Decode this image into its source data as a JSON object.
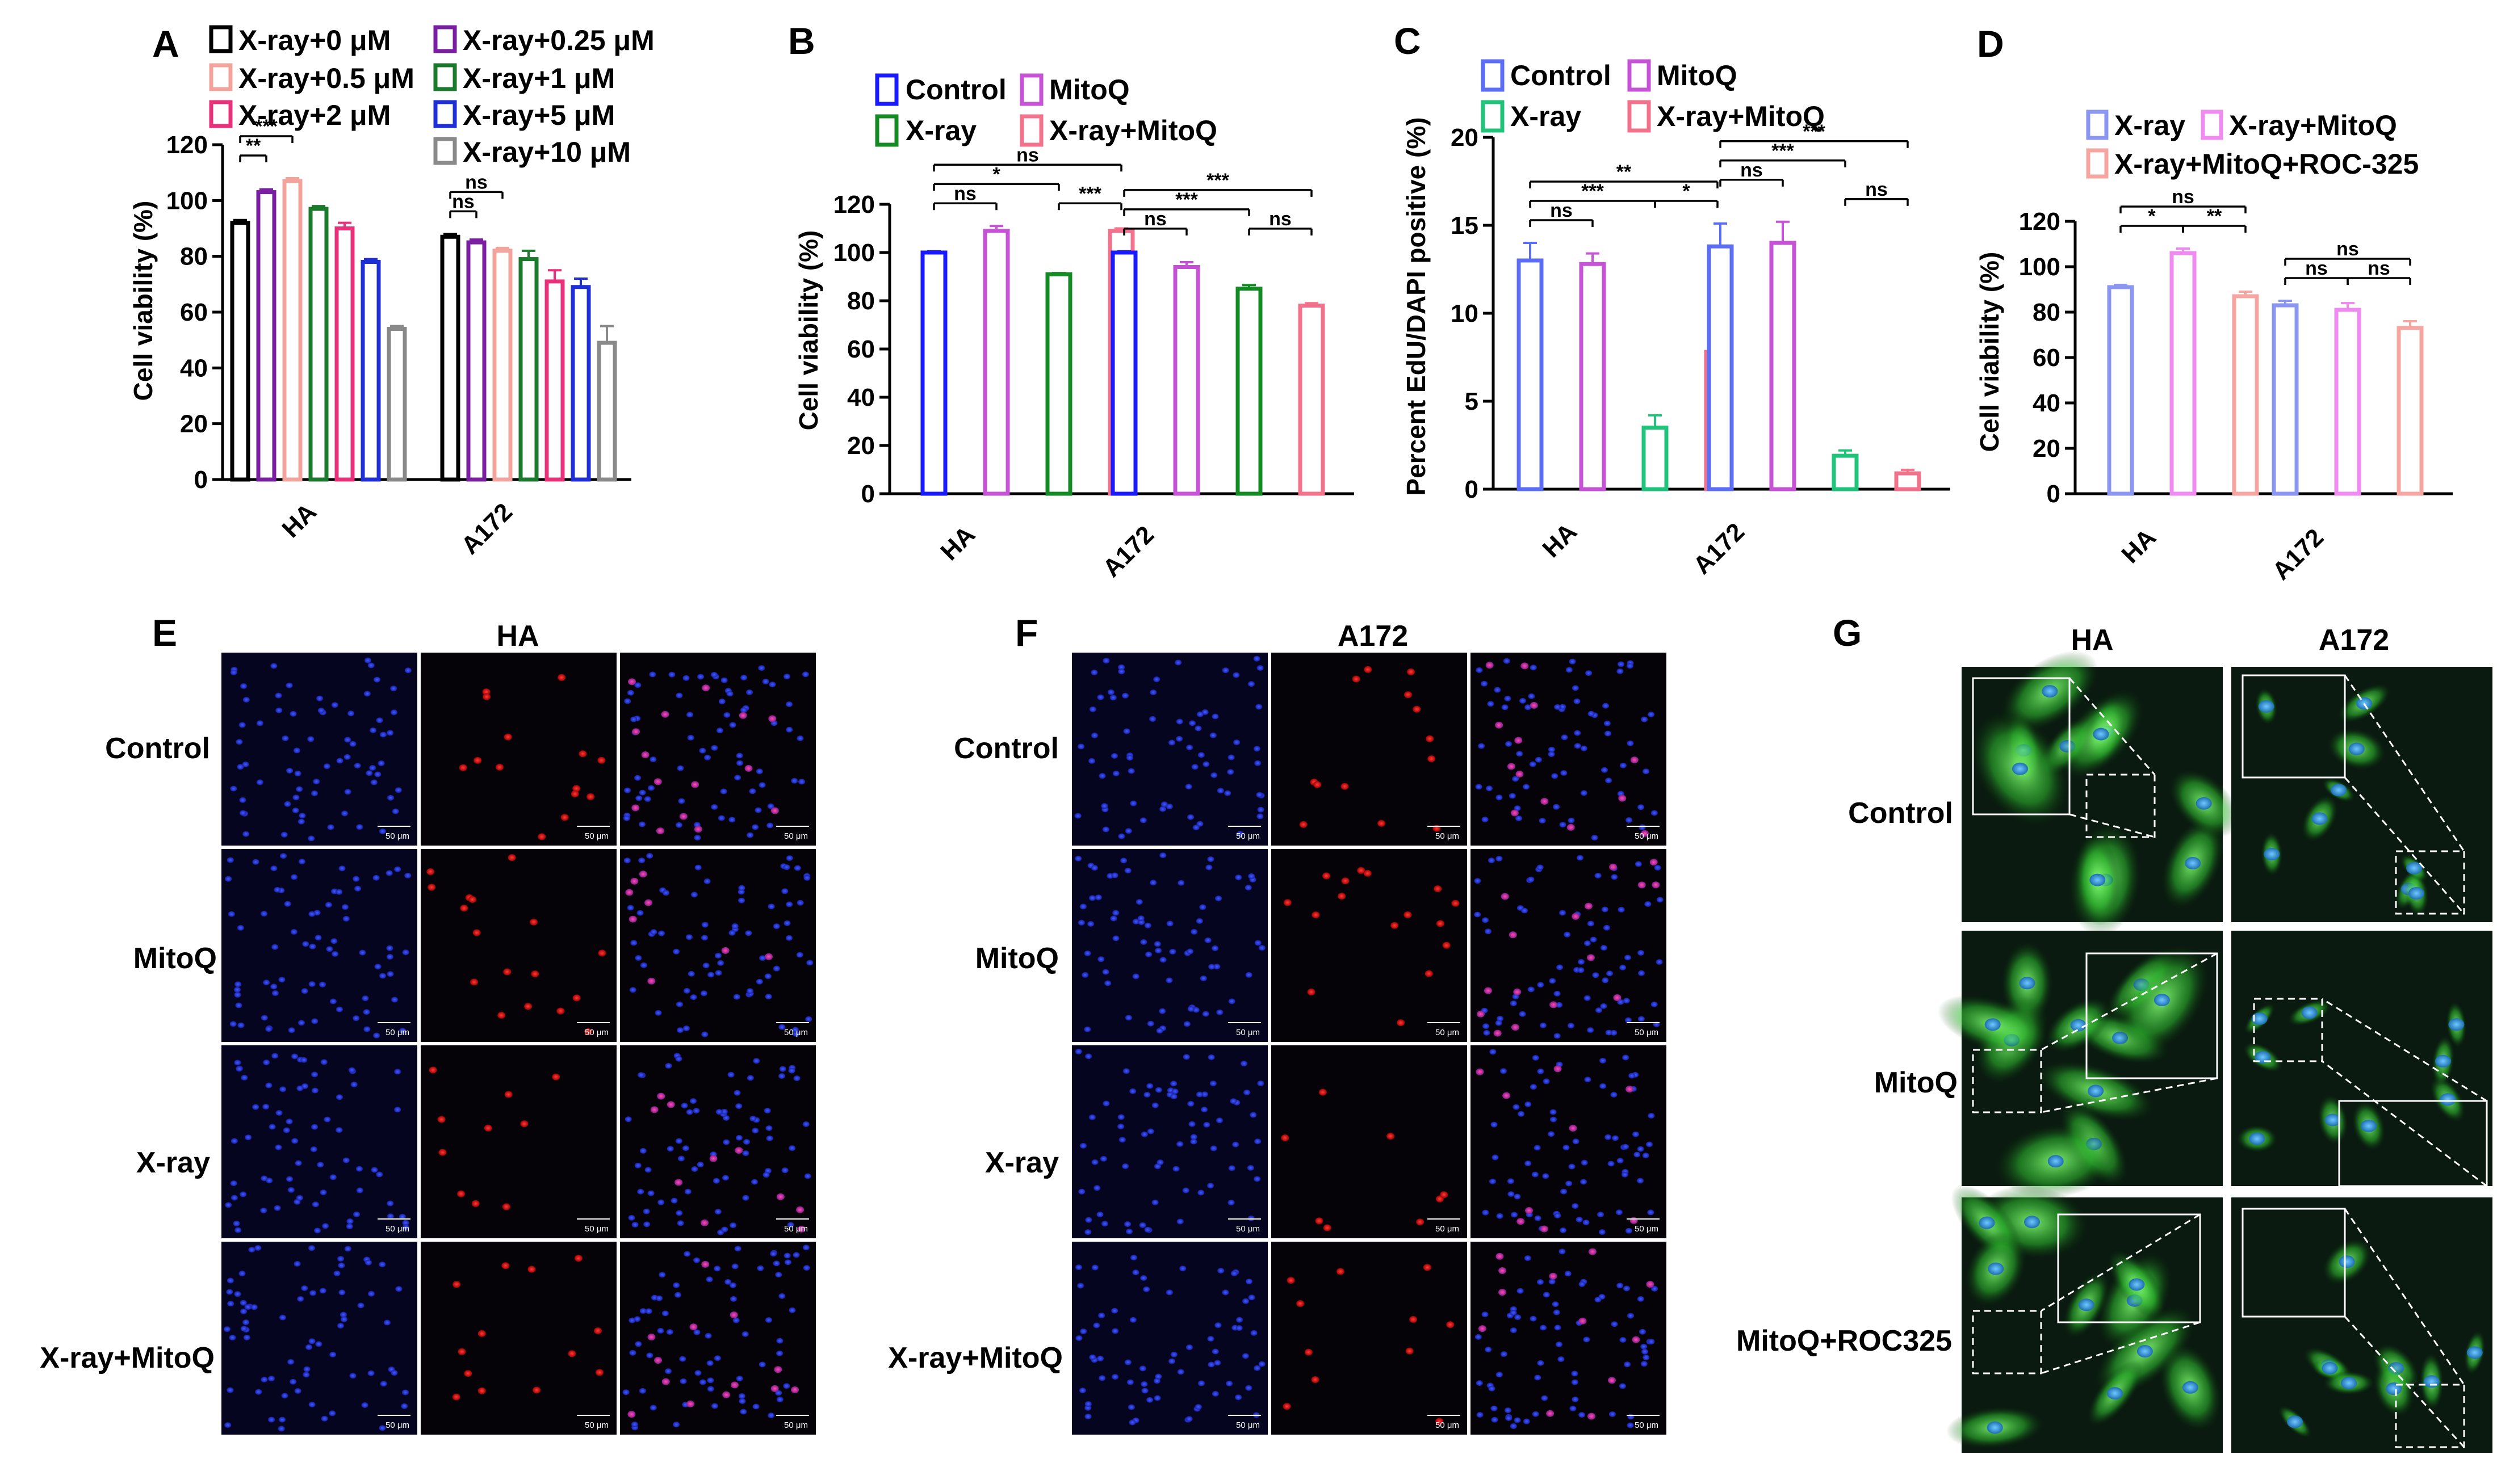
{
  "figure": {
    "panel_letters": {
      "A": "A",
      "B": "B",
      "C": "C",
      "D": "D",
      "E": "E",
      "F": "F",
      "G": "G"
    },
    "col_label_e": "HA",
    "col_label_f": "A172",
    "row_labels_ef": [
      "Control",
      "MitoQ",
      "X-ray",
      "X-ray+MitoQ"
    ],
    "g_col_labels": [
      "HA",
      "A172"
    ],
    "g_row_labels": [
      "Control",
      "MitoQ",
      "MitoQ+ROC325"
    ],
    "scale_bar_label": "50 μm"
  },
  "chart_data": [
    {
      "panel": "A",
      "type": "bar",
      "ylabel": "Cell viability (%)",
      "ylim": [
        0,
        120
      ],
      "yticks": [
        0,
        20,
        40,
        60,
        80,
        100,
        120
      ],
      "categories": [
        "HA",
        "A172"
      ],
      "series": [
        {
          "name": "X-ray+0 μM",
          "color": "#000000",
          "values": [
            92,
            87
          ],
          "errors": [
            1,
            1
          ]
        },
        {
          "name": "X-ray+0.25 μM",
          "color": "#7b1fa2",
          "values": [
            103,
            85
          ],
          "errors": [
            1,
            1
          ]
        },
        {
          "name": "X-ray+0.5 μM",
          "color": "#f2a49c",
          "values": [
            107,
            82
          ],
          "errors": [
            1,
            1
          ]
        },
        {
          "name": "X-ray+1 μM",
          "color": "#1b7a2b",
          "values": [
            97,
            79
          ],
          "errors": [
            1,
            3
          ]
        },
        {
          "name": "X-ray+2 μM",
          "color": "#e8317a",
          "values": [
            90,
            71
          ],
          "errors": [
            2,
            4
          ]
        },
        {
          "name": "X-ray+5 μM",
          "color": "#1f2fd6",
          "values": [
            78,
            69
          ],
          "errors": [
            1,
            3
          ]
        },
        {
          "name": "X-ray+10 μM",
          "color": "#8a8a8a",
          "values": [
            54,
            49
          ],
          "errors": [
            1,
            6
          ]
        }
      ],
      "significance": [
        {
          "group": 0,
          "from": 0,
          "to": 1,
          "label": "**",
          "level": 0
        },
        {
          "group": 0,
          "from": 0,
          "to": 2,
          "label": "***",
          "level": 1
        },
        {
          "group": 1,
          "from": 0,
          "to": 1,
          "label": "ns",
          "level": 0
        },
        {
          "group": 1,
          "from": 0,
          "to": 2,
          "label": "ns",
          "level": 1
        }
      ]
    },
    {
      "panel": "B",
      "type": "bar",
      "ylabel": "Cell viability (%)",
      "ylim": [
        0,
        120
      ],
      "yticks": [
        0,
        20,
        40,
        60,
        80,
        100,
        120
      ],
      "categories": [
        "HA",
        "A172"
      ],
      "series": [
        {
          "name": "Control",
          "color": "#1a1aff",
          "values": [
            100,
            100
          ],
          "errors": [
            0.5,
            0.5
          ]
        },
        {
          "name": "MitoQ",
          "color": "#c653d6",
          "values": [
            109,
            94
          ],
          "errors": [
            2,
            2
          ]
        },
        {
          "name": "X-ray",
          "color": "#138a24",
          "values": [
            91,
            85
          ],
          "errors": [
            0.5,
            1.5
          ]
        },
        {
          "name": "X-ray+MitoQ",
          "color": "#f2728c",
          "values": [
            109,
            78
          ],
          "errors": [
            1,
            1
          ]
        }
      ],
      "significance": [
        {
          "group": 0,
          "from": 0,
          "to": 1,
          "label": "ns",
          "level": 0
        },
        {
          "group": 0,
          "from": 2,
          "to": 3,
          "label": "***",
          "level": 0
        },
        {
          "group": 0,
          "from": 0,
          "to": 2,
          "label": "*",
          "level": 1
        },
        {
          "group": 0,
          "from": 0,
          "to": 3,
          "label": "ns",
          "level": 2
        },
        {
          "group": 1,
          "from": 0,
          "to": 1,
          "label": "ns",
          "level": 0
        },
        {
          "group": 1,
          "from": 2,
          "to": 3,
          "label": "ns",
          "level": 0
        },
        {
          "group": 1,
          "from": 0,
          "to": 2,
          "label": "***",
          "level": 1
        },
        {
          "group": 1,
          "from": 0,
          "to": 3,
          "label": "***",
          "level": 2
        }
      ]
    },
    {
      "panel": "C",
      "type": "bar",
      "ylabel": "Percent EdU/DAPI positive (%)",
      "ylim": [
        0,
        20
      ],
      "yticks": [
        0,
        5,
        10,
        15,
        20
      ],
      "categories": [
        "HA",
        "A172"
      ],
      "series": [
        {
          "name": "Control",
          "color": "#5b6cf5",
          "values": [
            13,
            13.8
          ],
          "errors": [
            1,
            1.3
          ]
        },
        {
          "name": "MitoQ",
          "color": "#c653d6",
          "values": [
            12.8,
            14
          ],
          "errors": [
            0.6,
            1.2
          ]
        },
        {
          "name": "X-ray",
          "color": "#1fc47a",
          "values": [
            3.5,
            1.9
          ],
          "errors": [
            0.7,
            0.3
          ]
        },
        {
          "name": "X-ray+MitoQ",
          "color": "#f2728c",
          "values": [
            7.8,
            0.9
          ],
          "errors": [
            0.4,
            0.2
          ]
        }
      ],
      "significance": [
        {
          "group": 0,
          "from": 0,
          "to": 1,
          "label": "ns",
          "level": 0
        },
        {
          "group": 0,
          "from": 0,
          "to": 2,
          "label": "***",
          "level": 1
        },
        {
          "group": 0,
          "from": 2,
          "to": 3,
          "label": "*",
          "level": 1
        },
        {
          "group": 0,
          "from": 0,
          "to": 3,
          "label": "**",
          "level": 2
        },
        {
          "group": 1,
          "from": 2,
          "to": 3,
          "label": "ns",
          "level": 0
        },
        {
          "group": 1,
          "from": 0,
          "to": 1,
          "label": "ns",
          "level": 1
        },
        {
          "group": 1,
          "from": 0,
          "to": 2,
          "label": "***",
          "level": 2
        },
        {
          "group": 1,
          "from": 0,
          "to": 3,
          "label": "***",
          "level": 3
        }
      ]
    },
    {
      "panel": "D",
      "type": "bar",
      "ylabel": "Cell viability (%)",
      "ylim": [
        0,
        120
      ],
      "yticks": [
        0,
        20,
        40,
        60,
        80,
        100,
        120
      ],
      "categories": [
        "HA",
        "A172"
      ],
      "series": [
        {
          "name": "X-ray",
          "color": "#8a96f0",
          "values": [
            91,
            83
          ],
          "errors": [
            1,
            2
          ]
        },
        {
          "name": "X-ray+MitoQ",
          "color": "#ee8af0",
          "values": [
            106,
            81
          ],
          "errors": [
            2,
            3
          ]
        },
        {
          "name": "X-ray+MitoQ+ROC-325",
          "color": "#f5a6a0",
          "values": [
            87,
            73
          ],
          "errors": [
            2,
            3
          ]
        }
      ],
      "significance": [
        {
          "group": 0,
          "from": 0,
          "to": 1,
          "label": "*",
          "level": 0
        },
        {
          "group": 0,
          "from": 1,
          "to": 2,
          "label": "**",
          "level": 0
        },
        {
          "group": 0,
          "from": 0,
          "to": 2,
          "label": "ns",
          "level": 1
        },
        {
          "group": 1,
          "from": 0,
          "to": 1,
          "label": "ns",
          "level": 0
        },
        {
          "group": 1,
          "from": 1,
          "to": 2,
          "label": "ns",
          "level": 0
        },
        {
          "group": 1,
          "from": 0,
          "to": 2,
          "label": "ns",
          "level": 1
        }
      ]
    }
  ]
}
